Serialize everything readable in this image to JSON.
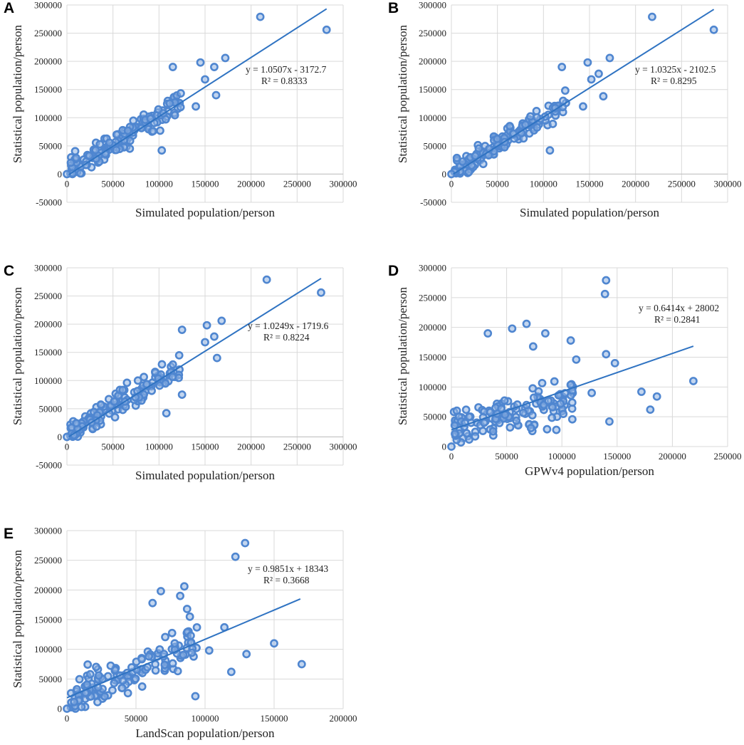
{
  "colors": {
    "marker_fill": "#8fb2e2",
    "marker_stroke": "#4f86d0",
    "trendline": "#2f73c2",
    "grid": "#d9d9d9"
  },
  "chart_data": [
    {
      "type": "scatter",
      "panel": "A",
      "xlabel": "Simulated population/person",
      "ylabel": "Statistical population/person",
      "xlim": [
        0,
        300000
      ],
      "ylim": [
        -50000,
        300000
      ],
      "xticks": [
        0,
        50000,
        100000,
        150000,
        200000,
        250000,
        300000
      ],
      "yticks": [
        -50000,
        0,
        50000,
        100000,
        150000,
        200000,
        250000,
        300000
      ],
      "trendline": {
        "slope": 1.0507,
        "intercept": -3172.7,
        "x_range": [
          2000,
          282000
        ]
      },
      "equation": "y = 1.0507x - 3172.7",
      "r2": "R² = 0.8333",
      "outliers": [
        [
          210000,
          279000
        ],
        [
          282000,
          256000
        ],
        [
          145000,
          198000
        ],
        [
          115000,
          190000
        ],
        [
          172000,
          206000
        ],
        [
          160000,
          190000
        ],
        [
          150000,
          168000
        ],
        [
          162000,
          140000
        ],
        [
          140000,
          120000
        ],
        [
          103000,
          42000
        ]
      ],
      "cluster": {
        "n": 140,
        "x_range": [
          3000,
          125000
        ],
        "slope": 1.0,
        "intercept": 2000,
        "noise": 16000,
        "seed": 11
      }
    },
    {
      "type": "scatter",
      "panel": "B",
      "xlabel": "Simulated population/person",
      "ylabel": "Statistical population/person",
      "xlim": [
        0,
        300000
      ],
      "ylim": [
        -50000,
        300000
      ],
      "xticks": [
        0,
        50000,
        100000,
        150000,
        200000,
        250000,
        300000
      ],
      "yticks": [
        -50000,
        0,
        50000,
        100000,
        150000,
        200000,
        250000,
        300000
      ],
      "trendline": {
        "slope": 1.0325,
        "intercept": -2102.5,
        "x_range": [
          2000,
          285000
        ]
      },
      "equation": "y = 1.0325x - 2102.5",
      "r2": "R² = 0.8295",
      "outliers": [
        [
          218000,
          279000
        ],
        [
          285000,
          256000
        ],
        [
          148000,
          198000
        ],
        [
          120000,
          190000
        ],
        [
          172000,
          206000
        ],
        [
          160000,
          178000
        ],
        [
          152000,
          168000
        ],
        [
          165000,
          138000
        ],
        [
          143000,
          120000
        ],
        [
          107000,
          42000
        ]
      ],
      "cluster": {
        "n": 140,
        "x_range": [
          3000,
          125000
        ],
        "slope": 1.0,
        "intercept": 2000,
        "noise": 16000,
        "seed": 23
      }
    },
    {
      "type": "scatter",
      "panel": "C",
      "xlabel": "Simulated population/person",
      "ylabel": "Statistical population/person",
      "xlim": [
        0,
        300000
      ],
      "ylim": [
        -50000,
        300000
      ],
      "xticks": [
        0,
        50000,
        100000,
        150000,
        200000,
        250000,
        300000
      ],
      "yticks": [
        -50000,
        0,
        50000,
        100000,
        150000,
        200000,
        250000,
        300000
      ],
      "trendline": {
        "slope": 1.0249,
        "intercept": -1719.6,
        "x_range": [
          2000,
          276000
        ]
      },
      "equation": "y = 1.0249x - 1719.6",
      "r2": "R² = 0.8224",
      "outliers": [
        [
          217000,
          279000
        ],
        [
          276000,
          256000
        ],
        [
          152000,
          198000
        ],
        [
          125000,
          190000
        ],
        [
          168000,
          206000
        ],
        [
          160000,
          178000
        ],
        [
          150000,
          168000
        ],
        [
          163000,
          140000
        ],
        [
          125000,
          75000
        ],
        [
          108000,
          42000
        ]
      ],
      "cluster": {
        "n": 140,
        "x_range": [
          3000,
          125000
        ],
        "slope": 1.0,
        "intercept": 2000,
        "noise": 16000,
        "seed": 37
      }
    },
    {
      "type": "scatter",
      "panel": "D",
      "xlabel": "GPWv4 population/person",
      "ylabel": "Statistical population/person",
      "xlim": [
        0,
        250000
      ],
      "ylim": [
        0,
        300000
      ],
      "xticks": [
        0,
        50000,
        100000,
        150000,
        200000,
        250000
      ],
      "yticks": [
        0,
        50000,
        100000,
        150000,
        200000,
        250000,
        300000
      ],
      "trendline": {
        "slope": 0.6414,
        "intercept": 28002,
        "x_range": [
          0,
          219000
        ]
      },
      "equation": "y = 0.6414x + 28002",
      "r2": "R² = 0.2841",
      "outliers": [
        [
          140000,
          279000
        ],
        [
          139000,
          256000
        ],
        [
          33000,
          190000
        ],
        [
          55000,
          198000
        ],
        [
          68000,
          206000
        ],
        [
          85000,
          190000
        ],
        [
          74000,
          168000
        ],
        [
          108000,
          178000
        ],
        [
          140000,
          155000
        ],
        [
          148000,
          140000
        ],
        [
          113000,
          146000
        ],
        [
          219000,
          110000
        ],
        [
          172000,
          92000
        ],
        [
          180000,
          62000
        ],
        [
          186000,
          84000
        ],
        [
          143000,
          42000
        ],
        [
          127000,
          90000
        ],
        [
          95000,
          28000
        ]
      ],
      "cluster": {
        "n": 135,
        "x_range": [
          2000,
          110000
        ],
        "slope": 0.45,
        "intercept": 32000,
        "noise": 25000,
        "seed": 51
      }
    },
    {
      "type": "scatter",
      "panel": "E",
      "xlabel": "LandScan population/person",
      "ylabel": "Statistical population/person",
      "xlim": [
        0,
        200000
      ],
      "ylim": [
        0,
        300000
      ],
      "xticks": [
        0,
        50000,
        100000,
        150000,
        200000
      ],
      "yticks": [
        0,
        50000,
        100000,
        150000,
        200000,
        250000,
        300000
      ],
      "trendline": {
        "slope": 0.9851,
        "intercept": 18343,
        "x_range": [
          0,
          169000
        ]
      },
      "equation": "y = 0.9851x + 18343",
      "r2": "R² = 0.3668",
      "outliers": [
        [
          129000,
          279000
        ],
        [
          122000,
          256000
        ],
        [
          85000,
          206000
        ],
        [
          68000,
          198000
        ],
        [
          82000,
          190000
        ],
        [
          87000,
          168000
        ],
        [
          89000,
          155000
        ],
        [
          62000,
          178000
        ],
        [
          150000,
          110000
        ],
        [
          170000,
          75000
        ],
        [
          130000,
          92000
        ],
        [
          119000,
          62000
        ],
        [
          93000,
          21000
        ],
        [
          114000,
          137000
        ],
        [
          103000,
          98000
        ]
      ],
      "cluster": {
        "n": 135,
        "x_range": [
          3000,
          95000
        ],
        "slope": 1.05,
        "intercept": 15000,
        "noise": 25000,
        "seed": 67
      }
    }
  ]
}
